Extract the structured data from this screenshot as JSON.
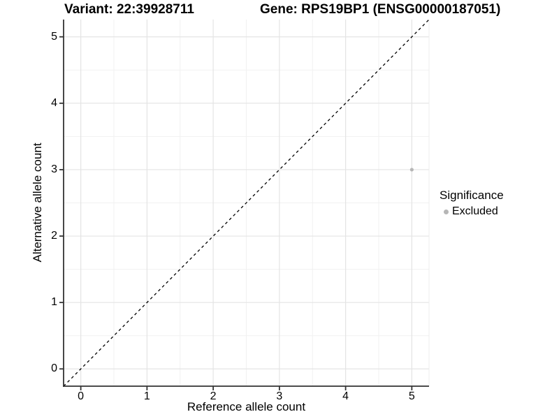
{
  "titles": {
    "variant": "Variant: 22:39928711",
    "gene": "Gene: RPS19BP1 (ENSG00000187051)"
  },
  "chart_data": {
    "type": "scatter",
    "title_left": "Variant: 22:39928711",
    "title_right": "Gene: RPS19BP1 (ENSG00000187051)",
    "xlabel": "Reference allele count",
    "ylabel": "Alternative allele count",
    "xlim": [
      -0.26,
      5.26
    ],
    "ylim": [
      -0.26,
      5.26
    ],
    "x_ticks": [
      0,
      1,
      2,
      3,
      4,
      5
    ],
    "y_ticks": [
      0,
      1,
      2,
      3,
      4,
      5
    ],
    "x_tick_labels": [
      "0",
      "1",
      "2",
      "3",
      "4",
      "5"
    ],
    "y_tick_labels": [
      "0",
      "1",
      "2",
      "3",
      "4",
      "5"
    ],
    "grid": "major+minor",
    "reference_line": {
      "type": "identity",
      "slope": 1,
      "intercept": 0,
      "style": "dashed",
      "color": "#000000"
    },
    "series": [
      {
        "name": "Excluded",
        "color": "#b6b6b6",
        "points": [
          {
            "x": 5,
            "y": 3
          }
        ]
      }
    ],
    "legend_title": "Significance",
    "legend_position": "right"
  },
  "colors": {
    "grid_major": "#e4e4e4",
    "grid_minor": "#f1f1f1",
    "axis_line": "#333333",
    "panel_edge": "#ededed",
    "point": "#b6b6b6",
    "text": "#000000"
  }
}
